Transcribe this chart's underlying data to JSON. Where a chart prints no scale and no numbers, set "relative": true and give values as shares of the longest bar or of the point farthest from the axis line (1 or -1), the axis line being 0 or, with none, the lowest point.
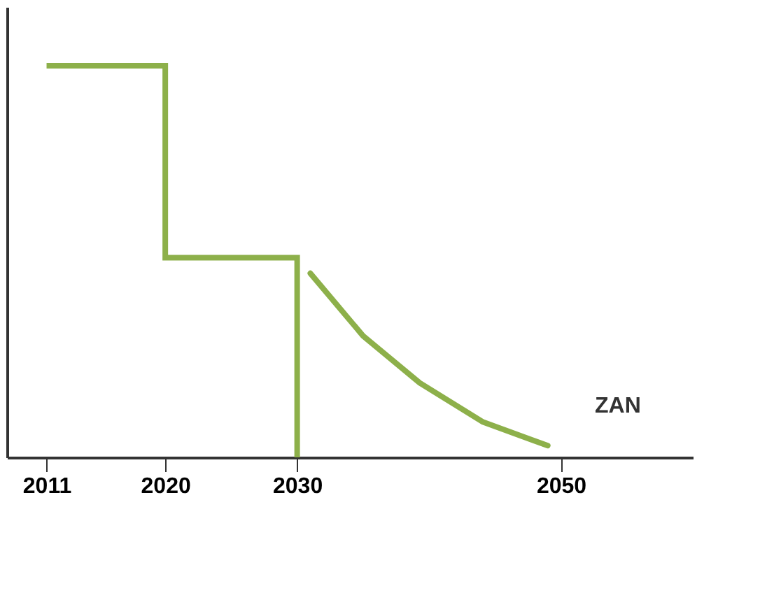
{
  "chart_data": {
    "type": "line",
    "relative": true,
    "tick_labels": "x",
    "grid": false,
    "xlim": [
      2008,
      2060
    ],
    "xticks": [
      2011,
      2020,
      2030,
      2050
    ],
    "annotations": [
      "ZAN"
    ],
    "series": [
      {
        "type": "step",
        "color": "#8db04a",
        "x": [
          2011,
          2020,
          2030
        ],
        "values": [
          1,
          0.51,
          0
        ]
      },
      {
        "color": "#8db04a",
        "x": [
          2031,
          2035,
          2039.3,
          2044.1,
          2049
        ],
        "values": [
          0.47,
          0.31,
          0.19,
          0.09,
          0.03
        ]
      }
    ]
  }
}
